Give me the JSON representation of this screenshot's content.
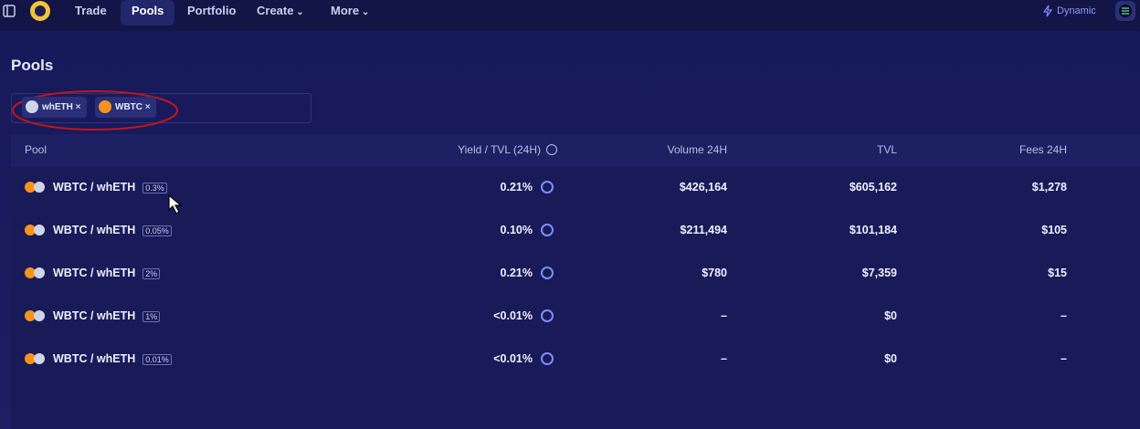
{
  "nav": {
    "items": [
      "Trade",
      "Pools",
      "Portfolio",
      "Create",
      "More"
    ],
    "wallet": "Dynamic"
  },
  "page": {
    "title": "Pools"
  },
  "filters": [
    "whETH",
    "WBTC"
  ],
  "table": {
    "headers": [
      "Pool",
      "Yield / TVL (24H)",
      "Volume 24H",
      "TVL",
      "Fees 24H"
    ],
    "rows": [
      [
        "WBTC / whETH",
        "0.3%",
        "0.21%",
        "$426,164",
        "$605,162",
        "$1,278"
      ],
      [
        "WBTC / whETH",
        "0.05%",
        "0.10%",
        "$211,494",
        "$101,184",
        "$105"
      ],
      [
        "WBTC / whETH",
        "2%",
        "0.21%",
        "$780",
        "$7,359",
        "$15"
      ],
      [
        "WBTC / whETH",
        "1%",
        "<0.01%",
        "–",
        "$0",
        "–"
      ],
      [
        "WBTC / whETH",
        "0.01%",
        "<0.01%",
        "–",
        "$0",
        "–"
      ]
    ]
  }
}
